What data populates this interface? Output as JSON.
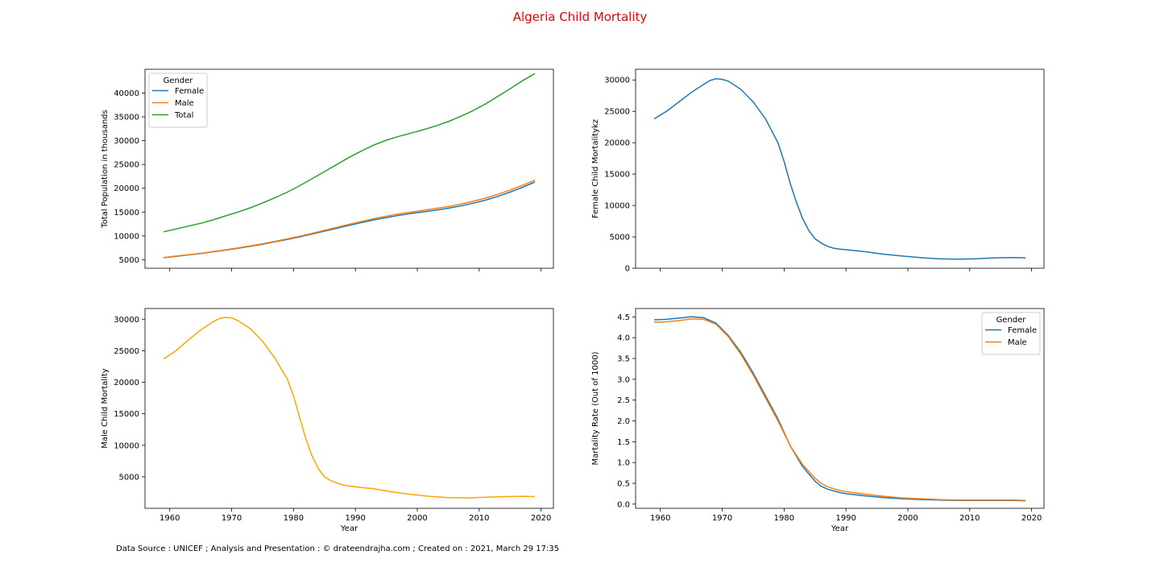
{
  "suptitle": "Algeria Child Mortality",
  "suptitle_color": "#e8000b",
  "footnote": "Data Source : UNICEF ; Analysis and Presentation : © drateendrajha.com ; Created on : 2021, March 29 17:35",
  "colors": {
    "female": "#1f77b4",
    "male": "#ff7f0e",
    "total": "#2ca02c",
    "male_mortality": "#ffa500"
  },
  "chart_data": [
    {
      "type": "line",
      "title": "",
      "xlabel": "",
      "ylabel": "Total Population in thousands",
      "xlim": [
        1956,
        2022
      ],
      "ylim": [
        3200,
        45000
      ],
      "xticks": [
        1960,
        1970,
        1980,
        1990,
        2000,
        2010,
        2020
      ],
      "yticks": [
        5000,
        10000,
        15000,
        20000,
        25000,
        30000,
        35000,
        40000
      ],
      "show_x_tick_labels": false,
      "grid": false,
      "legend": {
        "title": "Gender",
        "position": "upper left"
      },
      "x": [
        1959,
        1961,
        1963,
        1965,
        1967,
        1969,
        1971,
        1973,
        1975,
        1977,
        1979,
        1981,
        1983,
        1985,
        1987,
        1989,
        1991,
        1993,
        1995,
        1997,
        1999,
        2001,
        2003,
        2005,
        2007,
        2009,
        2011,
        2013,
        2015,
        2017,
        2019
      ],
      "series": [
        {
          "name": "Female",
          "color_key": "female",
          "values": [
            5400,
            5700,
            6000,
            6300,
            6650,
            7000,
            7400,
            7800,
            8250,
            8750,
            9250,
            9800,
            10400,
            11000,
            11600,
            12200,
            12800,
            13350,
            13850,
            14300,
            14700,
            15050,
            15400,
            15800,
            16300,
            16850,
            17500,
            18300,
            19200,
            20200,
            21300
          ]
        },
        {
          "name": "Male",
          "color_key": "male",
          "values": [
            5450,
            5750,
            6050,
            6350,
            6700,
            7070,
            7480,
            7900,
            8350,
            8850,
            9370,
            9930,
            10550,
            11180,
            11800,
            12450,
            13050,
            13620,
            14150,
            14620,
            15020,
            15380,
            15750,
            16170,
            16680,
            17260,
            17920,
            18730,
            19640,
            20640,
            21700
          ]
        },
        {
          "name": "Total",
          "color_key": "total",
          "values": [
            10850,
            11450,
            12050,
            12650,
            13350,
            14200,
            15000,
            15900,
            16900,
            18000,
            19200,
            20550,
            22000,
            23500,
            25000,
            26500,
            27850,
            29100,
            30100,
            30900,
            31600,
            32300,
            33100,
            34000,
            35100,
            36300,
            37700,
            39300,
            40900,
            42600,
            44100
          ]
        }
      ]
    },
    {
      "type": "line",
      "title": "",
      "xlabel": "",
      "ylabel": "Female Child Mortalitykz",
      "xlim": [
        1956,
        2022
      ],
      "ylim": [
        0,
        31700
      ],
      "xticks": [
        1960,
        1970,
        1980,
        1990,
        2000,
        2010,
        2020
      ],
      "yticks": [
        0,
        5000,
        10000,
        15000,
        20000,
        25000,
        30000
      ],
      "show_x_tick_labels": false,
      "grid": false,
      "legend": null,
      "x": [
        1959,
        1961,
        1963,
        1965,
        1967,
        1968,
        1969,
        1970,
        1971,
        1973,
        1975,
        1977,
        1979,
        1980,
        1981,
        1982,
        1983,
        1984,
        1985,
        1986,
        1987,
        1988,
        1989,
        1990,
        1993,
        1996,
        1999,
        2002,
        2005,
        2008,
        2011,
        2014,
        2017,
        2019
      ],
      "series": [
        {
          "name": "",
          "color_key": "female",
          "values": [
            23800,
            25000,
            26500,
            28000,
            29300,
            29900,
            30200,
            30100,
            29800,
            28500,
            26500,
            23800,
            20000,
            17000,
            13500,
            10500,
            7900,
            6000,
            4700,
            4000,
            3500,
            3200,
            3050,
            2950,
            2650,
            2250,
            1950,
            1700,
            1500,
            1450,
            1500,
            1650,
            1700,
            1650
          ]
        }
      ]
    },
    {
      "type": "line",
      "title": "",
      "xlabel": "Year",
      "ylabel": "Male Child Mortality",
      "xlim": [
        1956,
        2022
      ],
      "ylim": [
        0,
        31700
      ],
      "xticks": [
        1960,
        1970,
        1980,
        1990,
        2000,
        2010,
        2020
      ],
      "yticks": [
        5000,
        10000,
        15000,
        20000,
        25000,
        30000
      ],
      "show_x_tick_labels": true,
      "grid": false,
      "legend": null,
      "x": [
        1959,
        1961,
        1963,
        1965,
        1967,
        1968,
        1969,
        1970,
        1971,
        1973,
        1975,
        1977,
        1979,
        1980,
        1981,
        1982,
        1983,
        1984,
        1985,
        1986,
        1987,
        1988,
        1989,
        1990,
        1993,
        1996,
        1999,
        2002,
        2005,
        2008,
        2011,
        2014,
        2017,
        2019
      ],
      "series": [
        {
          "name": "",
          "color_key": "male_mortality",
          "values": [
            23700,
            25000,
            26700,
            28300,
            29600,
            30100,
            30300,
            30200,
            29800,
            28500,
            26500,
            23800,
            20500,
            17800,
            14400,
            11000,
            8300,
            6300,
            5000,
            4400,
            4000,
            3700,
            3550,
            3400,
            3100,
            2600,
            2200,
            1900,
            1700,
            1650,
            1750,
            1850,
            1900,
            1850
          ]
        }
      ]
    },
    {
      "type": "line",
      "title": "",
      "xlabel": "Year",
      "ylabel": "Martality Rate (Out of 1000)",
      "xlim": [
        1956,
        2022
      ],
      "ylim": [
        -0.1,
        4.7
      ],
      "xticks": [
        1960,
        1970,
        1980,
        1990,
        2000,
        2010,
        2020
      ],
      "yticks": [
        0.0,
        0.5,
        1.0,
        1.5,
        2.0,
        2.5,
        3.0,
        3.5,
        4.0,
        4.5
      ],
      "ytick_labels": [
        "0.0",
        "0.5",
        "1.0",
        "1.5",
        "2.0",
        "2.5",
        "3.0",
        "3.5",
        "4.0",
        "4.5"
      ],
      "show_x_tick_labels": true,
      "grid": false,
      "legend": {
        "title": "Gender",
        "position": "upper right"
      },
      "x": [
        1959,
        1961,
        1963,
        1965,
        1967,
        1969,
        1971,
        1973,
        1975,
        1977,
        1979,
        1981,
        1983,
        1985,
        1986,
        1987,
        1988,
        1989,
        1990,
        1993,
        1996,
        1999,
        2002,
        2005,
        2008,
        2011,
        2014,
        2017,
        2019
      ],
      "series": [
        {
          "name": "Female",
          "color_key": "female",
          "values": [
            4.43,
            4.44,
            4.47,
            4.5,
            4.48,
            4.35,
            4.05,
            3.65,
            3.15,
            2.6,
            2.05,
            1.4,
            0.9,
            0.55,
            0.43,
            0.36,
            0.32,
            0.28,
            0.25,
            0.2,
            0.16,
            0.13,
            0.11,
            0.1,
            0.09,
            0.09,
            0.09,
            0.09,
            0.08
          ]
        },
        {
          "name": "Male",
          "color_key": "male",
          "values": [
            4.37,
            4.38,
            4.41,
            4.45,
            4.44,
            4.32,
            4.02,
            3.6,
            3.1,
            2.55,
            2.0,
            1.4,
            0.95,
            0.62,
            0.5,
            0.42,
            0.37,
            0.33,
            0.3,
            0.24,
            0.19,
            0.15,
            0.13,
            0.11,
            0.1,
            0.1,
            0.1,
            0.1,
            0.09
          ]
        }
      ]
    }
  ]
}
